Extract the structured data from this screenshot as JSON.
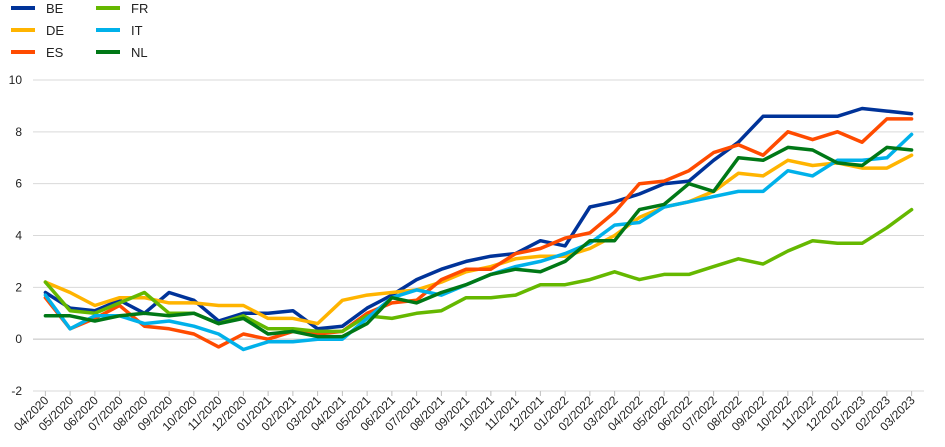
{
  "chart_data": {
    "type": "line",
    "title": "",
    "xlabel": "",
    "ylabel": "",
    "ylim": [
      -2,
      10
    ],
    "yticks": [
      -2,
      0,
      2,
      4,
      6,
      8,
      10
    ],
    "grid": "horizontal",
    "legend_position": "top-left",
    "categories": [
      "04/2020",
      "05/2020",
      "06/2020",
      "07/2020",
      "08/2020",
      "09/2020",
      "10/2020",
      "11/2020",
      "12/2020",
      "01/2021",
      "02/2021",
      "03/2021",
      "04/2021",
      "05/2021",
      "06/2021",
      "07/2021",
      "08/2021",
      "09/2021",
      "10/2021",
      "11/2021",
      "12/2021",
      "01/2022",
      "02/2022",
      "03/2022",
      "04/2022",
      "05/2022",
      "06/2022",
      "07/2022",
      "08/2022",
      "09/2022",
      "10/2022",
      "11/2022",
      "12/2022",
      "01/2023",
      "02/2023",
      "03/2023"
    ],
    "series": [
      {
        "name": "BE",
        "color": "#003399",
        "values": [
          1.8,
          1.2,
          1.1,
          1.5,
          1.0,
          1.8,
          1.5,
          0.7,
          1.0,
          1.0,
          1.1,
          0.4,
          0.5,
          1.2,
          1.7,
          2.3,
          2.7,
          3.0,
          3.2,
          3.3,
          3.8,
          3.6,
          5.1,
          5.3,
          5.6,
          6.0,
          6.1,
          6.9,
          7.6,
          8.6,
          8.6,
          8.6,
          8.6,
          8.9,
          8.8,
          8.7
        ]
      },
      {
        "name": "DE",
        "color": "#ffb400",
        "values": [
          2.2,
          1.8,
          1.3,
          1.6,
          1.6,
          1.4,
          1.4,
          1.3,
          1.3,
          0.8,
          0.8,
          0.6,
          1.5,
          1.7,
          1.8,
          1.9,
          2.2,
          2.6,
          2.8,
          3.1,
          3.2,
          3.2,
          3.5,
          4.0,
          4.7,
          5.1,
          5.3,
          5.7,
          6.4,
          6.3,
          6.9,
          6.7,
          6.8,
          6.6,
          6.6,
          7.1
        ]
      },
      {
        "name": "ES",
        "color": "#ff4b00",
        "values": [
          1.6,
          0.4,
          0.8,
          1.3,
          0.5,
          0.4,
          0.2,
          -0.3,
          0.2,
          0.0,
          0.3,
          0.2,
          0.3,
          1.0,
          1.4,
          1.5,
          2.3,
          2.7,
          2.7,
          3.3,
          3.5,
          3.9,
          4.1,
          4.9,
          6.0,
          6.1,
          6.5,
          7.2,
          7.5,
          7.1,
          8.0,
          7.7,
          8.0,
          7.6,
          8.5,
          8.5
        ]
      },
      {
        "name": "FR",
        "color": "#65b800",
        "values": [
          2.2,
          1.1,
          1.0,
          1.4,
          1.8,
          1.0,
          1.0,
          0.6,
          0.9,
          0.4,
          0.4,
          0.3,
          0.3,
          0.9,
          0.8,
          1.0,
          1.1,
          1.6,
          1.6,
          1.7,
          2.1,
          2.1,
          2.3,
          2.6,
          2.3,
          2.5,
          2.5,
          2.8,
          3.1,
          2.9,
          3.4,
          3.8,
          3.7,
          3.7,
          4.3,
          5.0
        ]
      },
      {
        "name": "IT",
        "color": "#00b1ea",
        "values": [
          1.7,
          0.4,
          0.9,
          0.9,
          0.6,
          0.7,
          0.5,
          0.2,
          -0.4,
          -0.1,
          -0.1,
          0.0,
          0.0,
          0.8,
          1.6,
          1.9,
          1.7,
          2.1,
          2.5,
          2.8,
          3.0,
          3.3,
          3.7,
          4.4,
          4.5,
          5.1,
          5.3,
          5.5,
          5.7,
          5.7,
          6.5,
          6.3,
          6.9,
          6.9,
          7.0,
          7.9
        ]
      },
      {
        "name": "NL",
        "color": "#007816",
        "values": [
          0.9,
          0.9,
          0.7,
          0.9,
          1.0,
          0.9,
          1.0,
          0.6,
          0.8,
          0.2,
          0.3,
          0.1,
          0.1,
          0.6,
          1.6,
          1.4,
          1.8,
          2.1,
          2.5,
          2.7,
          2.6,
          3.0,
          3.8,
          3.8,
          5.0,
          5.2,
          6.0,
          5.7,
          7.0,
          6.9,
          7.4,
          7.3,
          6.8,
          6.7,
          7.4,
          7.3
        ]
      }
    ]
  }
}
